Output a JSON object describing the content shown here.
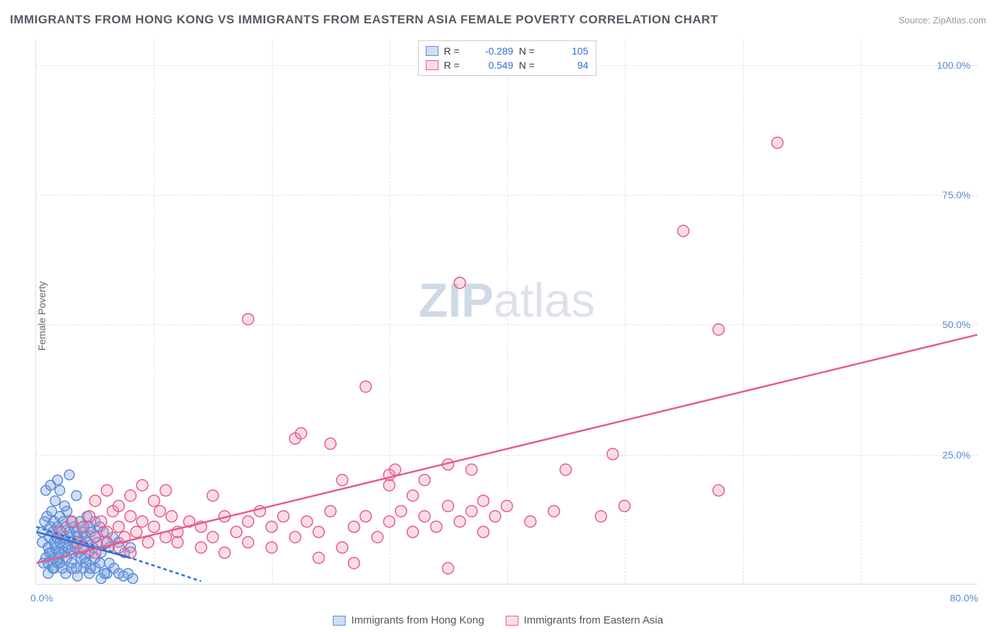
{
  "title": "IMMIGRANTS FROM HONG KONG VS IMMIGRANTS FROM EASTERN ASIA FEMALE POVERTY CORRELATION CHART",
  "source": "Source: ZipAtlas.com",
  "watermark_zip": "ZIP",
  "watermark_atlas": "atlas",
  "ylabel": "Female Poverty",
  "chart": {
    "type": "scatter",
    "xlim": [
      0,
      80
    ],
    "ylim": [
      0,
      105
    ],
    "y_ticks": [
      25,
      50,
      75,
      100
    ],
    "y_tick_labels": [
      "25.0%",
      "50.0%",
      "75.0%",
      "100.0%"
    ],
    "x_ticks": [
      0,
      80
    ],
    "x_tick_labels": [
      "0.0%",
      "80.0%"
    ],
    "x_gridlines": [
      10,
      20,
      30,
      40,
      50,
      60,
      70
    ],
    "background_color": "#ffffff",
    "grid_color": "#e2e2e2",
    "series": [
      {
        "name": "Immigrants from Hong Kong",
        "R": "-0.289",
        "N": "105",
        "fill": "rgba(120,160,220,0.35)",
        "stroke": "#5a8ad8",
        "marker_radius": 7,
        "trend_line": {
          "x1": 0,
          "y1": 11,
          "x2": 14,
          "y2": 0.5,
          "stroke": "#2c6fd4",
          "dash": "5,4"
        },
        "trend_solid": {
          "x1": 0,
          "y1": 10,
          "x2": 8,
          "y2": 5,
          "stroke": "#2c6fd4"
        },
        "points": [
          [
            0.5,
            8
          ],
          [
            0.5,
            10
          ],
          [
            0.7,
            12
          ],
          [
            0.8,
            5
          ],
          [
            0.9,
            13
          ],
          [
            1.0,
            7
          ],
          [
            1.1,
            9
          ],
          [
            1.2,
            11
          ],
          [
            1.3,
            14
          ],
          [
            1.3,
            6
          ],
          [
            1.4,
            10
          ],
          [
            1.5,
            8
          ],
          [
            1.5,
            12
          ],
          [
            1.6,
            7
          ],
          [
            1.7,
            9
          ],
          [
            1.8,
            11
          ],
          [
            1.8,
            20
          ],
          [
            1.9,
            5
          ],
          [
            2.0,
            13
          ],
          [
            2.0,
            8
          ],
          [
            2.1,
            10
          ],
          [
            2.2,
            7
          ],
          [
            2.3,
            12
          ],
          [
            2.3,
            9
          ],
          [
            2.4,
            6
          ],
          [
            2.5,
            11
          ],
          [
            2.5,
            8
          ],
          [
            2.6,
            14
          ],
          [
            2.7,
            7
          ],
          [
            2.8,
            10
          ],
          [
            2.8,
            21
          ],
          [
            2.9,
            9
          ],
          [
            3.0,
            12
          ],
          [
            3.0,
            6
          ],
          [
            3.1,
            8
          ],
          [
            3.2,
            11
          ],
          [
            3.3,
            7
          ],
          [
            3.4,
            10
          ],
          [
            3.4,
            17
          ],
          [
            3.5,
            9
          ],
          [
            3.6,
            6
          ],
          [
            3.7,
            12
          ],
          [
            3.8,
            8
          ],
          [
            3.9,
            11
          ],
          [
            4.0,
            7
          ],
          [
            4.0,
            10
          ],
          [
            4.1,
            5
          ],
          [
            4.2,
            9
          ],
          [
            4.3,
            13
          ],
          [
            4.4,
            8
          ],
          [
            4.5,
            11
          ],
          [
            4.5,
            6
          ],
          [
            4.6,
            10
          ],
          [
            4.8,
            7
          ],
          [
            5.0,
            9
          ],
          [
            5.0,
            12
          ],
          [
            5.2,
            8
          ],
          [
            5.4,
            11
          ],
          [
            5.5,
            6
          ],
          [
            5.7,
            10
          ],
          [
            6.0,
            8
          ],
          [
            6.2,
            7
          ],
          [
            6.5,
            9
          ],
          [
            7.0,
            8
          ],
          [
            7.5,
            6
          ],
          [
            8.0,
            7
          ],
          [
            1.0,
            2
          ],
          [
            1.5,
            3
          ],
          [
            2.0,
            4
          ],
          [
            2.5,
            2
          ],
          [
            3.0,
            3
          ],
          [
            3.5,
            1.5
          ],
          [
            4.0,
            3
          ],
          [
            4.5,
            2
          ],
          [
            5.0,
            3
          ],
          [
            5.5,
            1
          ],
          [
            6.0,
            2
          ],
          [
            0.8,
            18
          ],
          [
            1.2,
            19
          ],
          [
            1.6,
            16
          ],
          [
            2.0,
            18
          ],
          [
            2.4,
            15
          ],
          [
            0.6,
            4
          ],
          [
            1.0,
            4
          ],
          [
            1.4,
            3
          ],
          [
            1.8,
            4
          ],
          [
            2.2,
            3
          ],
          [
            2.6,
            5
          ],
          [
            3.0,
            4
          ],
          [
            3.4,
            3
          ],
          [
            3.8,
            5
          ],
          [
            4.2,
            4
          ],
          [
            4.6,
            3
          ],
          [
            5.0,
            5
          ],
          [
            5.4,
            4
          ],
          [
            5.8,
            2
          ],
          [
            6.2,
            4
          ],
          [
            6.6,
            3
          ],
          [
            7.0,
            2
          ],
          [
            7.4,
            1.5
          ],
          [
            7.8,
            2
          ],
          [
            8.2,
            1
          ],
          [
            1.1,
            6
          ],
          [
            1.5,
            5
          ],
          [
            1.9,
            6
          ]
        ]
      },
      {
        "name": "Immigrants from Eastern Asia",
        "R": "0.549",
        "N": "94",
        "fill": "rgba(240,150,175,0.32)",
        "stroke": "#e85a8a",
        "marker_radius": 8,
        "trend_line": {
          "x1": 0,
          "y1": 4,
          "x2": 80,
          "y2": 48,
          "stroke": "#e85a8a",
          "dash": null
        },
        "points": [
          [
            2,
            10
          ],
          [
            3,
            12
          ],
          [
            3.5,
            8
          ],
          [
            4,
            11
          ],
          [
            4.5,
            13
          ],
          [
            5,
            9
          ],
          [
            5.5,
            12
          ],
          [
            6,
            10
          ],
          [
            6.5,
            14
          ],
          [
            7,
            11
          ],
          [
            7.5,
            9
          ],
          [
            8,
            13
          ],
          [
            8.5,
            10
          ],
          [
            9,
            12
          ],
          [
            9.5,
            8
          ],
          [
            10,
            11
          ],
          [
            10.5,
            14
          ],
          [
            11,
            9
          ],
          [
            11.5,
            13
          ],
          [
            12,
            10
          ],
          [
            13,
            12
          ],
          [
            14,
            11
          ],
          [
            15,
            9
          ],
          [
            15,
            17
          ],
          [
            16,
            13
          ],
          [
            17,
            10
          ],
          [
            18,
            12
          ],
          [
            18,
            51
          ],
          [
            19,
            14
          ],
          [
            20,
            11
          ],
          [
            21,
            13
          ],
          [
            22,
            9
          ],
          [
            22,
            28
          ],
          [
            22.5,
            29
          ],
          [
            23,
            12
          ],
          [
            24,
            10
          ],
          [
            24,
            5
          ],
          [
            25,
            14
          ],
          [
            25,
            27
          ],
          [
            26,
            7
          ],
          [
            26,
            20
          ],
          [
            27,
            11
          ],
          [
            27,
            4
          ],
          [
            28,
            13
          ],
          [
            28,
            38
          ],
          [
            29,
            9
          ],
          [
            30,
            12
          ],
          [
            30,
            19
          ],
          [
            30,
            21
          ],
          [
            30.5,
            22
          ],
          [
            31,
            14
          ],
          [
            32,
            10
          ],
          [
            32,
            17
          ],
          [
            33,
            13
          ],
          [
            33,
            20
          ],
          [
            34,
            11
          ],
          [
            35,
            15
          ],
          [
            35,
            23
          ],
          [
            35,
            3
          ],
          [
            36,
            12
          ],
          [
            36,
            58
          ],
          [
            37,
            14
          ],
          [
            37,
            22
          ],
          [
            38,
            10
          ],
          [
            38,
            16
          ],
          [
            39,
            13
          ],
          [
            40,
            15
          ],
          [
            42,
            12
          ],
          [
            44,
            14
          ],
          [
            45,
            22
          ],
          [
            48,
            13
          ],
          [
            49,
            25
          ],
          [
            50,
            15
          ],
          [
            55,
            68
          ],
          [
            58,
            49
          ],
          [
            58,
            18
          ],
          [
            63,
            85
          ],
          [
            5,
            16
          ],
          [
            6,
            18
          ],
          [
            7,
            15
          ],
          [
            8,
            17
          ],
          [
            9,
            19
          ],
          [
            10,
            16
          ],
          [
            11,
            18
          ],
          [
            4,
            7
          ],
          [
            5,
            6
          ],
          [
            6,
            8
          ],
          [
            7,
            7
          ],
          [
            8,
            6
          ],
          [
            12,
            8
          ],
          [
            14,
            7
          ],
          [
            16,
            6
          ],
          [
            18,
            8
          ],
          [
            20,
            7
          ]
        ]
      }
    ]
  }
}
